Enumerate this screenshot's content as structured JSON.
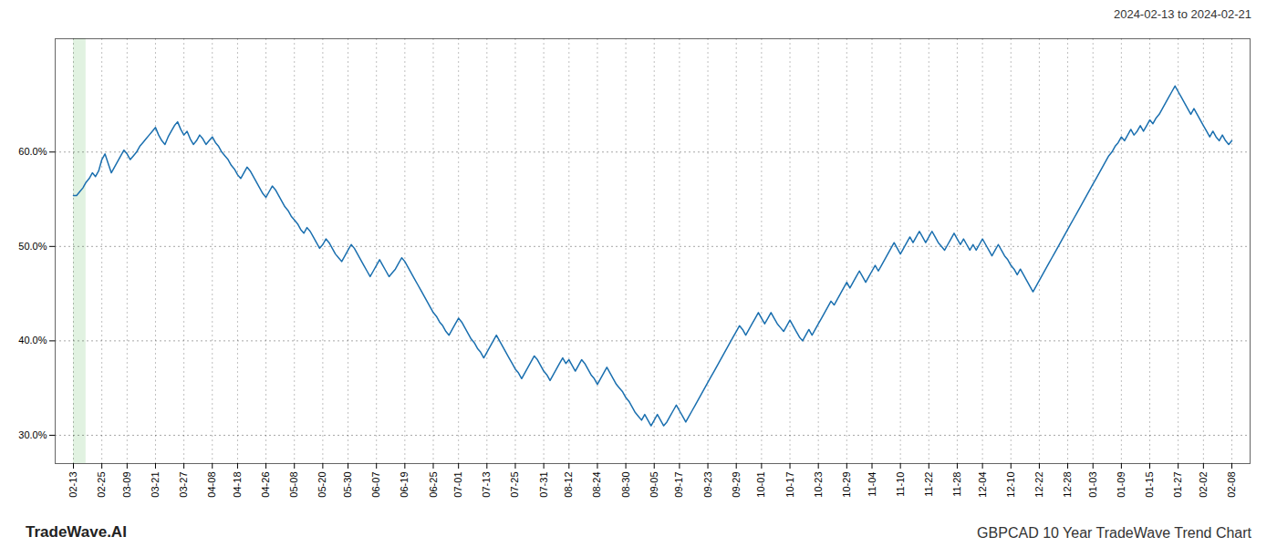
{
  "chart_data": {
    "type": "line",
    "title": "GBPCAD 10 Year TradeWave Trend Chart",
    "subtitle": "2024-02-13 to 2024-02-21",
    "annotations": [
      {
        "text": "TradeWave.AI"
      }
    ],
    "color": "#1a6faf",
    "highlight": {
      "from": 0,
      "to": 4,
      "color": "#d4ecd4"
    },
    "grid": true,
    "ylim": [
      0.27,
      0.72
    ],
    "yticks": [
      {
        "value": 0.3,
        "label": "30.0%"
      },
      {
        "value": 0.4,
        "label": "40.0%"
      },
      {
        "value": 0.5,
        "label": "50.0%"
      },
      {
        "value": 0.6,
        "label": "60.0%"
      }
    ],
    "categories": [
      "02-13",
      null,
      null,
      null,
      null,
      null,
      null,
      null,
      null,
      "02-25",
      null,
      null,
      null,
      null,
      null,
      null,
      null,
      "03-09",
      null,
      null,
      null,
      null,
      null,
      null,
      null,
      null,
      "03-21",
      null,
      null,
      null,
      null,
      null,
      null,
      null,
      null,
      "03-27",
      null,
      null,
      null,
      null,
      null,
      null,
      null,
      null,
      "04-08",
      null,
      null,
      null,
      null,
      null,
      null,
      null,
      "04-18",
      null,
      null,
      null,
      null,
      null,
      null,
      null,
      null,
      "04-26",
      null,
      null,
      null,
      null,
      null,
      null,
      null,
      null,
      "05-08",
      null,
      null,
      null,
      null,
      null,
      null,
      null,
      null,
      "05-20",
      null,
      null,
      null,
      null,
      null,
      null,
      null,
      "05-30",
      null,
      null,
      null,
      null,
      null,
      null,
      null,
      null,
      "06-07",
      null,
      null,
      null,
      null,
      null,
      null,
      null,
      null,
      "06-19",
      null,
      null,
      null,
      null,
      null,
      null,
      null,
      null,
      "06-25",
      null,
      null,
      null,
      null,
      null,
      null,
      null,
      "07-01",
      null,
      null,
      null,
      null,
      null,
      null,
      null,
      null,
      "07-13",
      null,
      null,
      null,
      null,
      null,
      null,
      null,
      null,
      "07-25",
      null,
      null,
      null,
      null,
      null,
      null,
      null,
      null,
      "07-31",
      null,
      null,
      null,
      null,
      null,
      null,
      null,
      "08-12",
      null,
      null,
      null,
      null,
      null,
      null,
      null,
      null,
      "08-24",
      null,
      null,
      null,
      null,
      null,
      null,
      null,
      null,
      "08-30",
      null,
      null,
      null,
      null,
      null,
      null,
      null,
      null,
      "09-05",
      null,
      null,
      null,
      null,
      null,
      null,
      null,
      "09-17",
      null,
      null,
      null,
      null,
      null,
      null,
      null,
      null,
      "09-23",
      null,
      null,
      null,
      null,
      null,
      null,
      null,
      null,
      "09-29",
      null,
      null,
      null,
      null,
      null,
      null,
      null,
      "10-01",
      null,
      null,
      null,
      null,
      null,
      null,
      null,
      null,
      "10-17",
      null,
      null,
      null,
      null,
      null,
      null,
      null,
      null,
      "10-23",
      null,
      null,
      null,
      null,
      null,
      null,
      null,
      null,
      "10-29",
      null,
      null,
      null,
      null,
      null,
      null,
      null,
      "11-04",
      null,
      null,
      null,
      null,
      null,
      null,
      null,
      null,
      "11-10",
      null,
      null,
      null,
      null,
      null,
      null,
      null,
      null,
      "11-22",
      null,
      null,
      null,
      null,
      null,
      null,
      null,
      null,
      "11-28",
      null,
      null,
      null,
      null,
      null,
      null,
      null,
      "12-04",
      null,
      null,
      null,
      null,
      null,
      null,
      null,
      null,
      "12-10",
      null,
      null,
      null,
      null,
      null,
      null,
      null,
      null,
      "12-22",
      null,
      null,
      null,
      null,
      null,
      null,
      null,
      null,
      "12-28",
      null,
      null,
      null,
      null,
      null,
      null,
      null,
      "01-03",
      null,
      null,
      null,
      null,
      null,
      null,
      null,
      null,
      "01-09",
      null,
      null,
      null,
      null,
      null,
      null,
      null,
      null,
      "01-15",
      null,
      null,
      null,
      null,
      null,
      null,
      null,
      null,
      "01-27",
      null,
      null,
      null,
      null,
      null,
      null,
      null,
      "02-02",
      null,
      null,
      null,
      null,
      null,
      null,
      null,
      null,
      "02-08"
    ],
    "values": [
      0.554,
      0.554,
      0.558,
      0.562,
      0.568,
      0.572,
      0.578,
      0.574,
      0.58,
      0.592,
      0.598,
      0.588,
      0.578,
      0.584,
      0.59,
      0.596,
      0.602,
      0.598,
      0.592,
      0.596,
      0.6,
      0.606,
      0.61,
      0.614,
      0.618,
      0.622,
      0.626,
      0.618,
      0.612,
      0.608,
      0.616,
      0.622,
      0.628,
      0.632,
      0.624,
      0.618,
      0.622,
      0.614,
      0.608,
      0.612,
      0.618,
      0.614,
      0.608,
      0.612,
      0.616,
      0.61,
      0.606,
      0.6,
      0.596,
      0.592,
      0.586,
      0.582,
      0.576,
      0.572,
      0.578,
      0.584,
      0.58,
      0.574,
      0.568,
      0.562,
      0.556,
      0.552,
      0.558,
      0.564,
      0.56,
      0.554,
      0.548,
      0.542,
      0.538,
      0.532,
      0.528,
      0.524,
      0.518,
      0.514,
      0.52,
      0.516,
      0.51,
      0.504,
      0.498,
      0.502,
      0.508,
      0.504,
      0.498,
      0.492,
      0.488,
      0.484,
      0.49,
      0.496,
      0.502,
      0.498,
      0.492,
      0.486,
      0.48,
      0.474,
      0.468,
      0.474,
      0.48,
      0.486,
      0.48,
      0.474,
      0.468,
      0.472,
      0.476,
      0.482,
      0.488,
      0.484,
      0.478,
      0.472,
      0.466,
      0.46,
      0.454,
      0.448,
      0.442,
      0.436,
      0.43,
      0.426,
      0.42,
      0.416,
      0.41,
      0.406,
      0.412,
      0.418,
      0.424,
      0.42,
      0.414,
      0.408,
      0.402,
      0.398,
      0.392,
      0.388,
      0.382,
      0.388,
      0.394,
      0.4,
      0.406,
      0.4,
      0.394,
      0.388,
      0.382,
      0.376,
      0.37,
      0.366,
      0.36,
      0.366,
      0.372,
      0.378,
      0.384,
      0.38,
      0.374,
      0.368,
      0.364,
      0.358,
      0.364,
      0.37,
      0.376,
      0.382,
      0.376,
      0.38,
      0.374,
      0.368,
      0.374,
      0.38,
      0.376,
      0.37,
      0.364,
      0.36,
      0.354,
      0.36,
      0.366,
      0.372,
      0.366,
      0.36,
      0.354,
      0.35,
      0.346,
      0.34,
      0.336,
      0.33,
      0.324,
      0.32,
      0.316,
      0.322,
      0.316,
      0.31,
      0.316,
      0.322,
      0.316,
      0.31,
      0.314,
      0.32,
      0.326,
      0.332,
      0.326,
      0.32,
      0.314,
      0.32,
      0.326,
      0.332,
      0.338,
      0.344,
      0.35,
      0.356,
      0.362,
      0.368,
      0.374,
      0.38,
      0.386,
      0.392,
      0.398,
      0.404,
      0.41,
      0.416,
      0.412,
      0.406,
      0.412,
      0.418,
      0.424,
      0.43,
      0.424,
      0.418,
      0.424,
      0.43,
      0.424,
      0.418,
      0.414,
      0.41,
      0.416,
      0.422,
      0.416,
      0.41,
      0.404,
      0.4,
      0.406,
      0.412,
      0.406,
      0.412,
      0.418,
      0.424,
      0.43,
      0.436,
      0.442,
      0.438,
      0.444,
      0.45,
      0.456,
      0.462,
      0.456,
      0.462,
      0.468,
      0.474,
      0.468,
      0.462,
      0.468,
      0.474,
      0.48,
      0.474,
      0.48,
      0.486,
      0.492,
      0.498,
      0.504,
      0.498,
      0.492,
      0.498,
      0.504,
      0.51,
      0.504,
      0.51,
      0.516,
      0.51,
      0.504,
      0.51,
      0.516,
      0.51,
      0.504,
      0.5,
      0.496,
      0.502,
      0.508,
      0.514,
      0.508,
      0.502,
      0.508,
      0.502,
      0.496,
      0.502,
      0.496,
      0.502,
      0.508,
      0.502,
      0.496,
      0.49,
      0.496,
      0.502,
      0.496,
      0.49,
      0.486,
      0.48,
      0.476,
      0.47,
      0.476,
      0.47,
      0.464,
      0.458,
      0.452,
      0.458,
      0.464,
      0.47,
      0.476,
      0.482,
      0.488,
      0.494,
      0.5,
      0.506,
      0.512,
      0.518,
      0.524,
      0.53,
      0.536,
      0.542,
      0.548,
      0.554,
      0.56,
      0.566,
      0.572,
      0.578,
      0.584,
      0.59,
      0.596,
      0.6,
      0.606,
      0.61,
      0.616,
      0.612,
      0.618,
      0.624,
      0.618,
      0.622,
      0.628,
      0.622,
      0.628,
      0.634,
      0.63,
      0.636,
      0.64,
      0.646,
      0.652,
      0.658,
      0.664,
      0.67,
      0.664,
      0.658,
      0.652,
      0.646,
      0.64,
      0.646,
      0.64,
      0.634,
      0.628,
      0.622,
      0.616,
      0.622,
      0.616,
      0.612,
      0.618,
      0.612,
      0.608,
      0.612
    ]
  }
}
